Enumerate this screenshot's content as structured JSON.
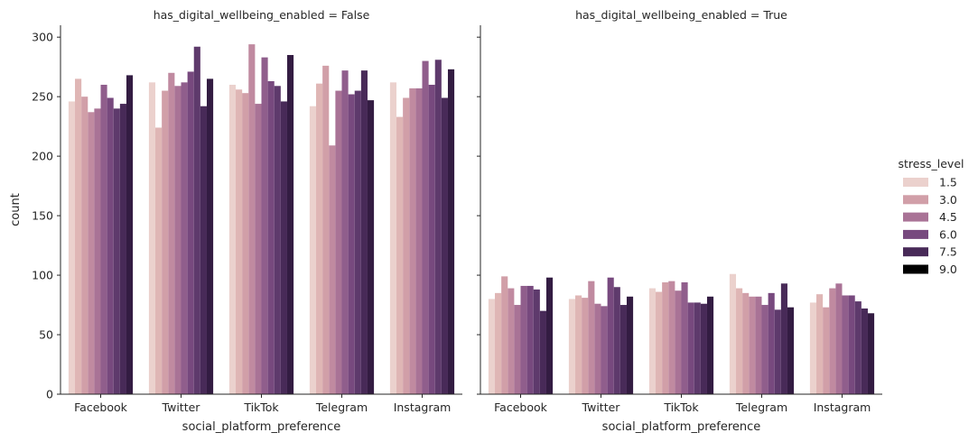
{
  "chart_data": {
    "type": "bar",
    "ylabel": "count",
    "xlabel": "social_platform_preference",
    "ylim": [
      0,
      310
    ],
    "yticks": [
      0,
      50,
      100,
      150,
      200,
      250,
      300
    ],
    "categories": [
      "Facebook",
      "Twitter",
      "TikTok",
      "Telegram",
      "Instagram"
    ],
    "legend": {
      "title": "stress_level",
      "position": "right",
      "labels": [
        "1.5",
        "3.0",
        "4.5",
        "6.0",
        "7.5",
        "9.0"
      ]
    },
    "hue_levels": 10,
    "colors": [
      "#ebd1cd",
      "#dfb6b5",
      "#d19fa8",
      "#c08aa0",
      "#a97396",
      "#905e8c",
      "#77497e",
      "#5e3a6c",
      "#482a58",
      "#331c42"
    ],
    "facets": [
      {
        "title": "has_digital_wellbeing_enabled = False",
        "values": [
          [
            246,
            265,
            250,
            237,
            240,
            260,
            249,
            240,
            244,
            268
          ],
          [
            262,
            224,
            255,
            270,
            259,
            262,
            271,
            292,
            242,
            265
          ],
          [
            260,
            256,
            253,
            294,
            244,
            283,
            263,
            259,
            246,
            285
          ],
          [
            242,
            261,
            276,
            209,
            255,
            272,
            252,
            255,
            272,
            247
          ],
          [
            262,
            233,
            249,
            257,
            257,
            280,
            260,
            281,
            249,
            273
          ]
        ]
      },
      {
        "title": "has_digital_wellbeing_enabled = True",
        "values": [
          [
            80,
            85,
            99,
            89,
            75,
            91,
            91,
            88,
            70,
            98
          ],
          [
            80,
            83,
            81,
            95,
            76,
            74,
            98,
            90,
            75,
            82
          ],
          [
            89,
            86,
            94,
            95,
            87,
            94,
            77,
            77,
            76,
            82
          ],
          [
            101,
            89,
            85,
            82,
            82,
            75,
            85,
            71,
            93,
            73
          ],
          [
            77,
            84,
            73,
            89,
            93,
            83,
            83,
            78,
            72,
            68
          ]
        ]
      }
    ]
  }
}
